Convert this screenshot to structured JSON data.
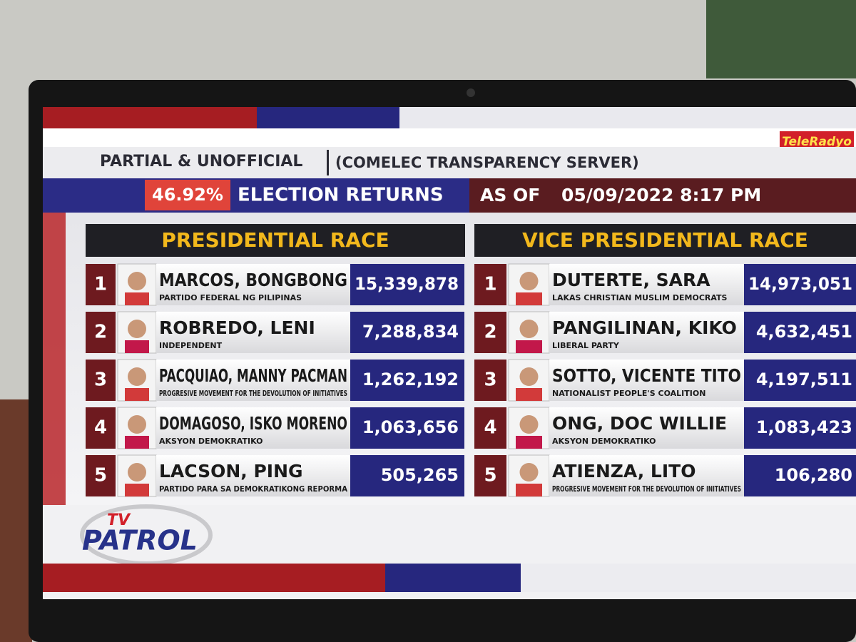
{
  "header": {
    "brand": "TeleRadyo",
    "status": "PARTIAL & UNOFFICIAL",
    "source": "(COMELEC TRANSPARENCY SERVER)",
    "percent": "46.92%",
    "returns": "ELECTION RETURNS",
    "as_of": "AS OF",
    "datetime": "05/09/2022 8:17 PM"
  },
  "races": [
    {
      "title": "PRESIDENTIAL RACE",
      "candidates": [
        {
          "rank": "1",
          "name": "MARCOS, BONGBONG",
          "party": "PARTIDO FEDERAL NG PILIPINAS",
          "votes": "15,339,878"
        },
        {
          "rank": "2",
          "name": "ROBREDO, LENI",
          "party": "INDEPENDENT",
          "votes": "7,288,834"
        },
        {
          "rank": "3",
          "name": "PACQUIAO, MANNY PACMAN",
          "party": "PROGRESIVE MOVEMENT FOR THE DEVOLUTION OF INITIATIVES",
          "votes": "1,262,192"
        },
        {
          "rank": "4",
          "name": "DOMAGOSO, ISKO MORENO",
          "party": "AKSYON DEMOKRATIKO",
          "votes": "1,063,656"
        },
        {
          "rank": "5",
          "name": "LACSON, PING",
          "party": "PARTIDO PARA SA DEMOKRATIKONG  REPORMA",
          "votes": "505,265"
        }
      ]
    },
    {
      "title": "VICE PRESIDENTIAL RACE",
      "candidates": [
        {
          "rank": "1",
          "name": "DUTERTE, SARA",
          "party": "LAKAS CHRISTIAN MUSLIM DEMOCRATS",
          "votes": "14,973,051"
        },
        {
          "rank": "2",
          "name": "PANGILINAN, KIKO",
          "party": "LIBERAL PARTY",
          "votes": "4,632,451"
        },
        {
          "rank": "3",
          "name": "SOTTO, VICENTE TITO",
          "party": "NATIONALIST PEOPLE'S COALITION",
          "votes": "4,197,511"
        },
        {
          "rank": "4",
          "name": "ONG, DOC WILLIE",
          "party": "AKSYON DEMOKRATIKO",
          "votes": "1,083,423"
        },
        {
          "rank": "5",
          "name": "ATIENZA, LITO",
          "party": "PROGRESIVE MOVEMENT FOR THE DEVOLUTION OF INITIATIVES",
          "votes": "106,280"
        }
      ]
    }
  ],
  "logo": {
    "top": "TV",
    "main": "PATROL"
  }
}
